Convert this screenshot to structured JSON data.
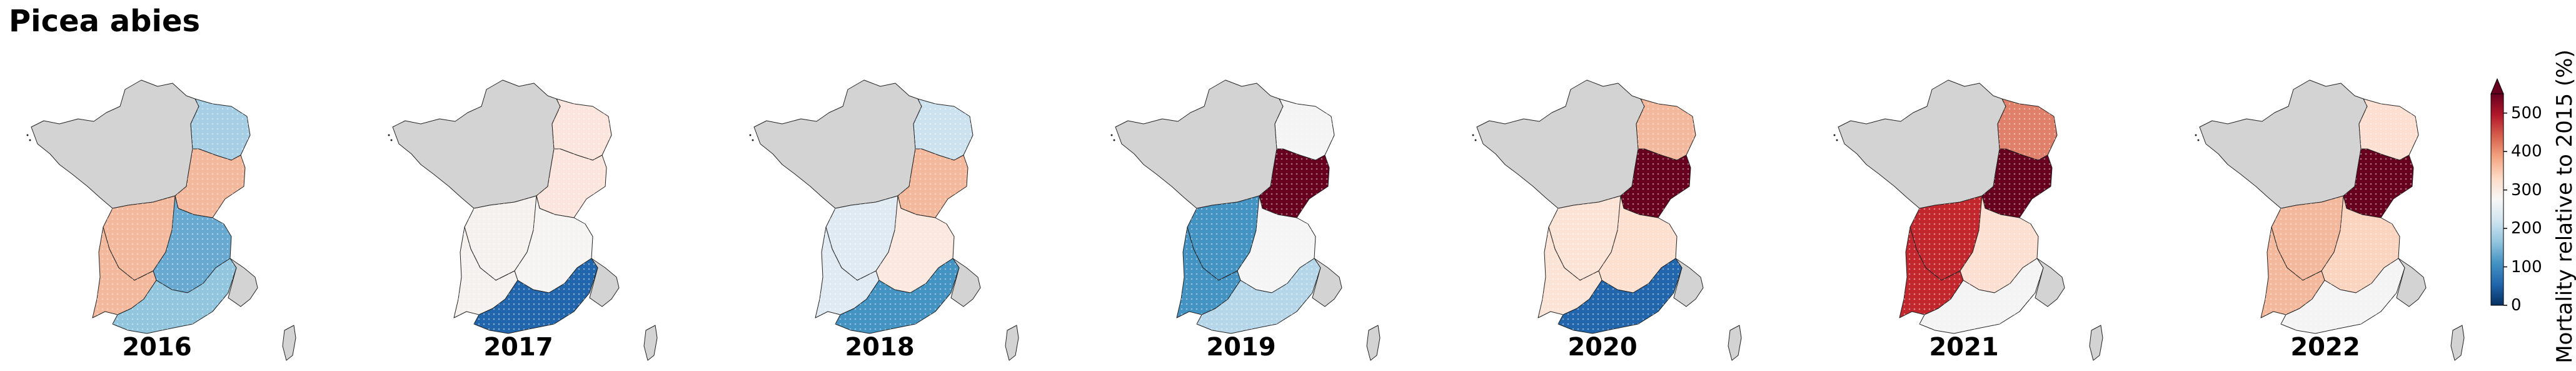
{
  "title": "Picea abies",
  "colorbar": {
    "label": "Mortality relative to 2015 (%)",
    "ticks": [
      "0",
      "100",
      "200",
      "300",
      "400",
      "500"
    ],
    "range": [
      0,
      550
    ],
    "colors": [
      "#053061",
      "#2166ac",
      "#4393c3",
      "#92c5de",
      "#d1e5f0",
      "#f7f7f7",
      "#fddbc7",
      "#f4a582",
      "#d6604d",
      "#b2182b",
      "#67001f"
    ],
    "extend": "max"
  },
  "no_data_color": "#d3d3d3",
  "regions": [
    "northwest",
    "northeast",
    "east",
    "west",
    "centre",
    "southwest",
    "southeast",
    "corsica"
  ],
  "maps": [
    {
      "year": "2016",
      "fills": {
        "northwest": "#d3d3d3",
        "northeast": "#a6cfe5",
        "east": "#f4b89c",
        "west": "#f4b89c",
        "centre": "#68a9d1",
        "southwest": "#f4b89c",
        "southeast": "#92c5de",
        "corsica": "#d3d3d3"
      }
    },
    {
      "year": "2017",
      "fills": {
        "northwest": "#d3d3d3",
        "northeast": "#fbe5dc",
        "east": "#fbe5dc",
        "west": "#f5f1ef",
        "centre": "#f5f4f3",
        "southwest": "#f5f1ef",
        "southeast": "#2166ac",
        "corsica": "#d3d3d3"
      }
    },
    {
      "year": "2018",
      "fills": {
        "northwest": "#d3d3d3",
        "northeast": "#cde2ef",
        "east": "#f4b89c",
        "west": "#dfeaf2",
        "centre": "#fbe8df",
        "southwest": "#dfeaf2",
        "southeast": "#4393c3",
        "corsica": "#d3d3d3"
      }
    },
    {
      "year": "2019",
      "fills": {
        "northwest": "#d3d3d3",
        "northeast": "#f4f4f4",
        "east": "#67001f",
        "west": "#4393c3",
        "centre": "#f5f5f5",
        "southwest": "#4393c3",
        "southeast": "#b6d7ea",
        "corsica": "#d3d3d3"
      }
    },
    {
      "year": "2020",
      "fills": {
        "northwest": "#d3d3d3",
        "northeast": "#f4b89c",
        "east": "#67001f",
        "west": "#fbe3d6",
        "centre": "#fde0cf",
        "southwest": "#fbe3d6",
        "southeast": "#2166ac",
        "corsica": "#d3d3d3"
      }
    },
    {
      "year": "2021",
      "fills": {
        "northwest": "#d3d3d3",
        "northeast": "#e0806a",
        "east": "#67001f",
        "west": "#c1272d",
        "centre": "#fde0d2",
        "southwest": "#c1272d",
        "southeast": "#f4f4f4",
        "corsica": "#d3d3d3"
      }
    },
    {
      "year": "2022",
      "fills": {
        "northwest": "#d3d3d3",
        "northeast": "#fde0d2",
        "east": "#67001f",
        "west": "#f4b89c",
        "centre": "#fbd4c0",
        "southwest": "#f4b89c",
        "southeast": "#f4f4f4",
        "corsica": "#d3d3d3"
      }
    }
  ]
}
